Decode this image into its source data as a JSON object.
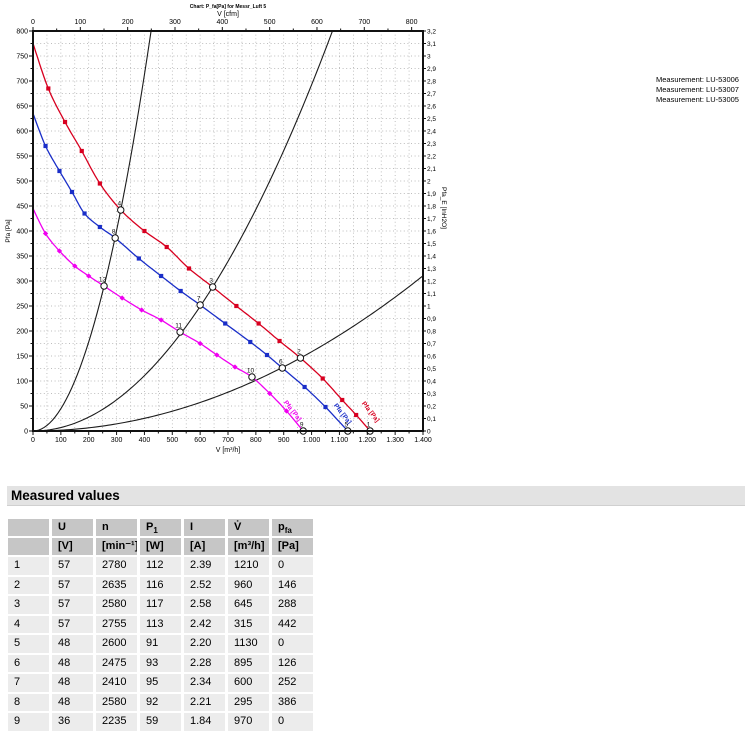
{
  "section_header": "Measured values",
  "legend": {
    "items": [
      "Measurement: LU-53006",
      "Measurement: LU-53007",
      "Measurement: LU-53005"
    ]
  },
  "chart_data": {
    "type": "line",
    "title": "Chart: P_fa[Pa] for Messr_Luft 5",
    "x_axis": {
      "label": "V [m³/h]",
      "min": 0,
      "max": 1400,
      "major_step": 100,
      "minor_step": 50
    },
    "y_axis": {
      "label": "Pfa [Pa]",
      "min": 0,
      "max": 800,
      "major_step": 50,
      "minor_step": 25
    },
    "x2_axis": {
      "label": "V [cfm]",
      "min": 0,
      "max": 800,
      "major_step": 100,
      "minor_step": 50,
      "m3h_per_cfm": 1.699
    },
    "y2_axis": {
      "label": "Pfa_E [InH2O]",
      "min": 0,
      "max": 3.2,
      "major_step": 0.1
    },
    "grid": true,
    "colors": {
      "frame": "#111111",
      "grid": "#a8a8a8",
      "system_curve": "#1c1c1c"
    },
    "series": [
      {
        "name": "Measurement: LU-53006",
        "voltage": "57 V",
        "color": "#d80020",
        "marker": "square",
        "curve_label": "Pfa [Pa]",
        "label_pos": {
          "x": 369,
          "y": 413,
          "rot": 52
        },
        "points": [
          [
            0,
            775
          ],
          [
            55,
            685
          ],
          [
            115,
            618
          ],
          [
            175,
            560
          ],
          [
            240,
            495
          ],
          [
            315,
            442
          ],
          [
            400,
            400
          ],
          [
            480,
            368
          ],
          [
            560,
            325
          ],
          [
            645,
            288
          ],
          [
            730,
            250
          ],
          [
            810,
            215
          ],
          [
            885,
            180
          ],
          [
            960,
            146
          ],
          [
            1040,
            105
          ],
          [
            1110,
            62
          ],
          [
            1160,
            32
          ],
          [
            1210,
            0
          ]
        ]
      },
      {
        "name": "Measurement: LU-53007",
        "voltage": "48 V",
        "color": "#1a2ec8",
        "marker": "square",
        "curve_label": "Pfa [Pa]",
        "label_pos": {
          "x": 341,
          "y": 415,
          "rot": 52
        },
        "points": [
          [
            0,
            635
          ],
          [
            45,
            570
          ],
          [
            95,
            520
          ],
          [
            140,
            478
          ],
          [
            185,
            435
          ],
          [
            240,
            408
          ],
          [
            295,
            386
          ],
          [
            380,
            345
          ],
          [
            460,
            310
          ],
          [
            530,
            280
          ],
          [
            600,
            252
          ],
          [
            690,
            215
          ],
          [
            780,
            178
          ],
          [
            840,
            152
          ],
          [
            895,
            126
          ],
          [
            975,
            88
          ],
          [
            1050,
            48
          ],
          [
            1130,
            0
          ]
        ]
      },
      {
        "name": "Measurement: LU-53005",
        "voltage": "36 V",
        "color": "#f000f0",
        "marker": "diamond",
        "curve_label": "Pfa [Pa]",
        "label_pos": {
          "x": 291,
          "y": 412,
          "rot": 52
        },
        "points": [
          [
            0,
            445
          ],
          [
            45,
            395
          ],
          [
            95,
            360
          ],
          [
            150,
            330
          ],
          [
            200,
            310
          ],
          [
            255,
            290
          ],
          [
            320,
            266
          ],
          [
            390,
            242
          ],
          [
            460,
            222
          ],
          [
            528,
            198
          ],
          [
            600,
            175
          ],
          [
            660,
            152
          ],
          [
            725,
            128
          ],
          [
            786,
            108
          ],
          [
            850,
            75
          ],
          [
            910,
            40
          ],
          [
            970,
            0
          ]
        ]
      }
    ],
    "system_curves": [
      {
        "k": 0.004454
      },
      {
        "k": 0.0006923
      },
      {
        "k": 0.0001584
      }
    ],
    "numbered_points": [
      {
        "n": 1,
        "v": 1210,
        "p": 0
      },
      {
        "n": 2,
        "v": 960,
        "p": 146
      },
      {
        "n": 3,
        "v": 645,
        "p": 288
      },
      {
        "n": 4,
        "v": 315,
        "p": 442
      },
      {
        "n": 5,
        "v": 1130,
        "p": 0
      },
      {
        "n": 6,
        "v": 895,
        "p": 126
      },
      {
        "n": 7,
        "v": 600,
        "p": 252
      },
      {
        "n": 8,
        "v": 295,
        "p": 386
      },
      {
        "n": 9,
        "v": 970,
        "p": 0
      },
      {
        "n": 10,
        "v": 786,
        "p": 108
      },
      {
        "n": 11,
        "v": 528,
        "p": 198
      },
      {
        "n": 12,
        "v": 255,
        "p": 290
      }
    ]
  },
  "table": {
    "headers": [
      {
        "t": ""
      },
      {
        "t": "U"
      },
      {
        "t": "n"
      },
      {
        "t": "P",
        "sub": "1"
      },
      {
        "t": "I"
      },
      {
        "t": "V̇"
      },
      {
        "t": "p",
        "sub": "fa"
      }
    ],
    "units": [
      "",
      "[V]",
      "[min⁻¹]",
      "[W]",
      "[A]",
      "[m³/h]",
      "[Pa]"
    ],
    "rows": [
      [
        "1",
        "57",
        "2780",
        "112",
        "2.39",
        "1210",
        "0"
      ],
      [
        "2",
        "57",
        "2635",
        "116",
        "2.52",
        "960",
        "146"
      ],
      [
        "3",
        "57",
        "2580",
        "117",
        "2.58",
        "645",
        "288"
      ],
      [
        "4",
        "57",
        "2755",
        "113",
        "2.42",
        "315",
        "442"
      ],
      [
        "5",
        "48",
        "2600",
        "91",
        "2.20",
        "1130",
        "0"
      ],
      [
        "6",
        "48",
        "2475",
        "93",
        "2.28",
        "895",
        "126"
      ],
      [
        "7",
        "48",
        "2410",
        "95",
        "2.34",
        "600",
        "252"
      ],
      [
        "8",
        "48",
        "2580",
        "92",
        "2.21",
        "295",
        "386"
      ],
      [
        "9",
        "36",
        "2235",
        "59",
        "1.84",
        "970",
        "0"
      ]
    ]
  }
}
